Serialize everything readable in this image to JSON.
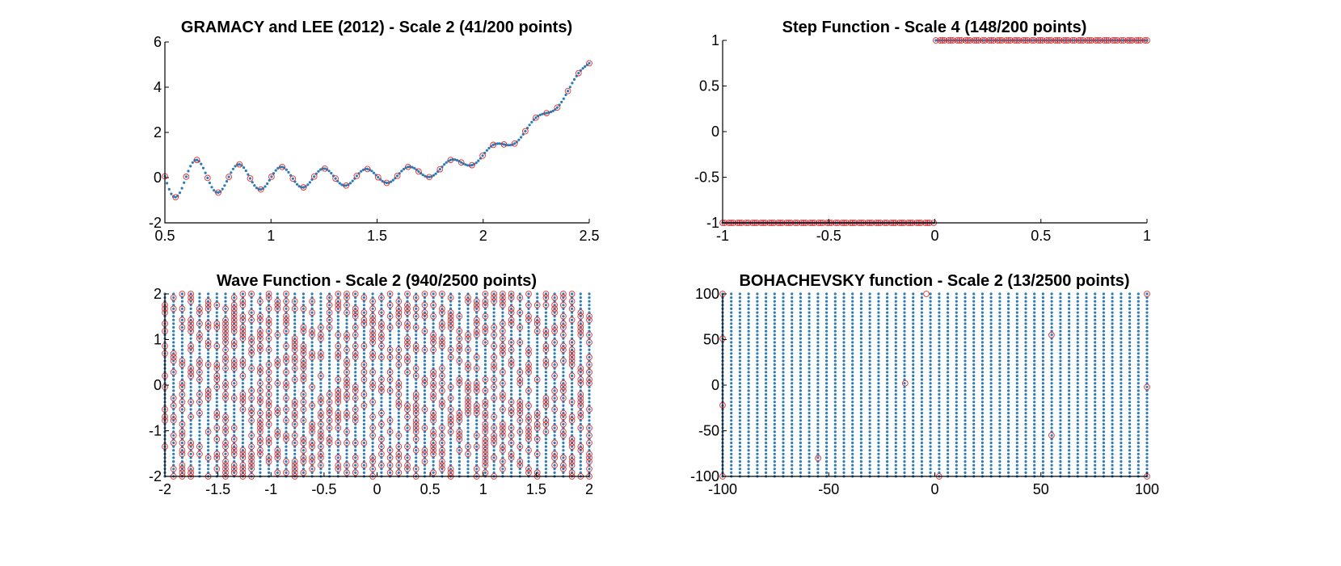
{
  "colors": {
    "sample_points": "#2b7bb9",
    "selected_points": "#d9302f",
    "axis": "#000000",
    "background": "#ffffff"
  },
  "chart_data": [
    {
      "id": "gramacy",
      "type": "scatter",
      "title": "GRAMACY and LEE (2012) - Scale 2 (41/200 points)",
      "xlim": [
        0.5,
        2.5
      ],
      "ylim": [
        -2,
        6
      ],
      "xticks": [
        0.5,
        1,
        1.5,
        2,
        2.5
      ],
      "xtick_labels": [
        "0.5",
        "1",
        "1.5",
        "2",
        "2.5"
      ],
      "yticks": [
        -2,
        0,
        2,
        4,
        6
      ],
      "ytick_labels": [
        "-2",
        "0",
        "2",
        "4",
        "6"
      ],
      "function": "gramacy_lee",
      "sample_count": 200,
      "selected_count": 41,
      "grid": false
    },
    {
      "id": "step",
      "type": "scatter",
      "title": "Step Function - Scale 4 (148/200 points)",
      "xlim": [
        -1,
        1
      ],
      "ylim": [
        -1,
        1
      ],
      "xticks": [
        -1,
        -0.5,
        0,
        0.5,
        1
      ],
      "xtick_labels": [
        "-1",
        "-0.5",
        "0",
        "0.5",
        "1"
      ],
      "yticks": [
        -1,
        -0.5,
        0,
        0.5,
        1
      ],
      "ytick_labels": [
        "-1",
        "-0.5",
        "0",
        "0.5",
        "1"
      ],
      "function": "step",
      "sample_count": 200,
      "selected_count": 148,
      "grid": false
    },
    {
      "id": "wave",
      "type": "scatter",
      "title": "Wave Function - Scale 2 (940/2500 points)",
      "xlim": [
        -2,
        2
      ],
      "ylim": [
        -2,
        2
      ],
      "xticks": [
        -2,
        -1.5,
        -1,
        -0.5,
        0,
        0.5,
        1,
        1.5,
        2
      ],
      "xtick_labels": [
        "-2",
        "-1.5",
        "-1",
        "-0.5",
        "0",
        "0.5",
        "1",
        "1.5",
        "2"
      ],
      "yticks": [
        -2,
        -1,
        0,
        1,
        2
      ],
      "ytick_labels": [
        "-2",
        "-1",
        "0",
        "1",
        "2"
      ],
      "grid_columns": 50,
      "grid_rows": 50,
      "sample_count": 2500,
      "selected_count": 940,
      "grid": false
    },
    {
      "id": "bohachevsky",
      "type": "scatter",
      "title": "BOHACHEVSKY function - Scale 2 (13/2500 points)",
      "xlim": [
        -100,
        100
      ],
      "ylim": [
        -100,
        100
      ],
      "xticks": [
        -100,
        -50,
        0,
        50,
        100
      ],
      "xtick_labels": [
        "-100",
        "-50",
        "0",
        "50",
        "100"
      ],
      "yticks": [
        -100,
        -50,
        0,
        50,
        100
      ],
      "ytick_labels": [
        "-100",
        "-50",
        "0",
        "50",
        "100"
      ],
      "grid_columns": 50,
      "grid_rows": 50,
      "sample_count": 2500,
      "selected_count": 13,
      "selected_points": [
        [
          -100,
          100
        ],
        [
          -100,
          51
        ],
        [
          -100,
          -22
        ],
        [
          -100,
          -100
        ],
        [
          -55,
          -80
        ],
        [
          -14,
          2
        ],
        [
          -4,
          100
        ],
        [
          2,
          -100
        ],
        [
          55,
          55
        ],
        [
          55,
          -55
        ],
        [
          100,
          100
        ],
        [
          100,
          -2
        ],
        [
          100,
          -100
        ]
      ],
      "grid": false
    }
  ]
}
